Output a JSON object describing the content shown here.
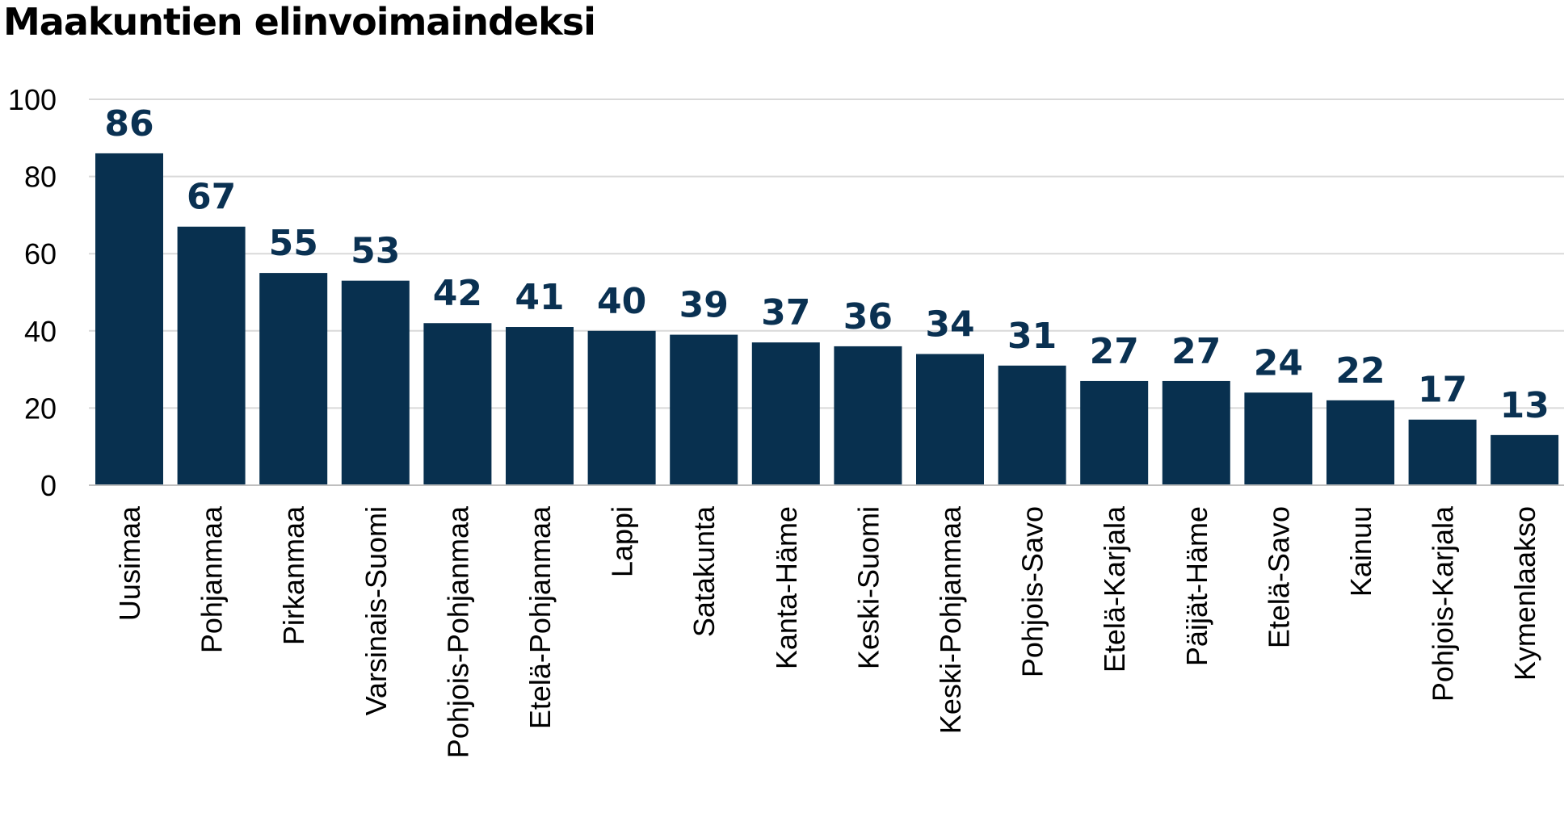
{
  "chart_data": {
    "type": "bar",
    "title": "Maakuntien elinvoimaindeksi",
    "xlabel": "",
    "ylabel": "",
    "ylim": [
      0,
      100
    ],
    "yticks": [
      0,
      20,
      40,
      60,
      80,
      100
    ],
    "grid": true,
    "legend": "none",
    "bar_color": "#08304f",
    "label_color": "#0a3152",
    "categories": [
      "Uusimaa",
      "Pohjanmaa",
      "Pirkanmaa",
      "Varsinais-Suomi",
      "Pohjois-Pohjanmaa",
      "Etelä-Pohjanmaa",
      "Lappi",
      "Satakunta",
      "Kanta-Häme",
      "Keski-Suomi",
      "Keski-Pohjanmaa",
      "Pohjois-Savo",
      "Etelä-Karjala",
      "Päijät-Häme",
      "Etelä-Savo",
      "Kainuu",
      "Pohjois-Karjala",
      "Kymenlaakso"
    ],
    "values": [
      86,
      67,
      55,
      53,
      42,
      41,
      40,
      39,
      37,
      36,
      34,
      31,
      27,
      27,
      24,
      22,
      17,
      13
    ]
  }
}
